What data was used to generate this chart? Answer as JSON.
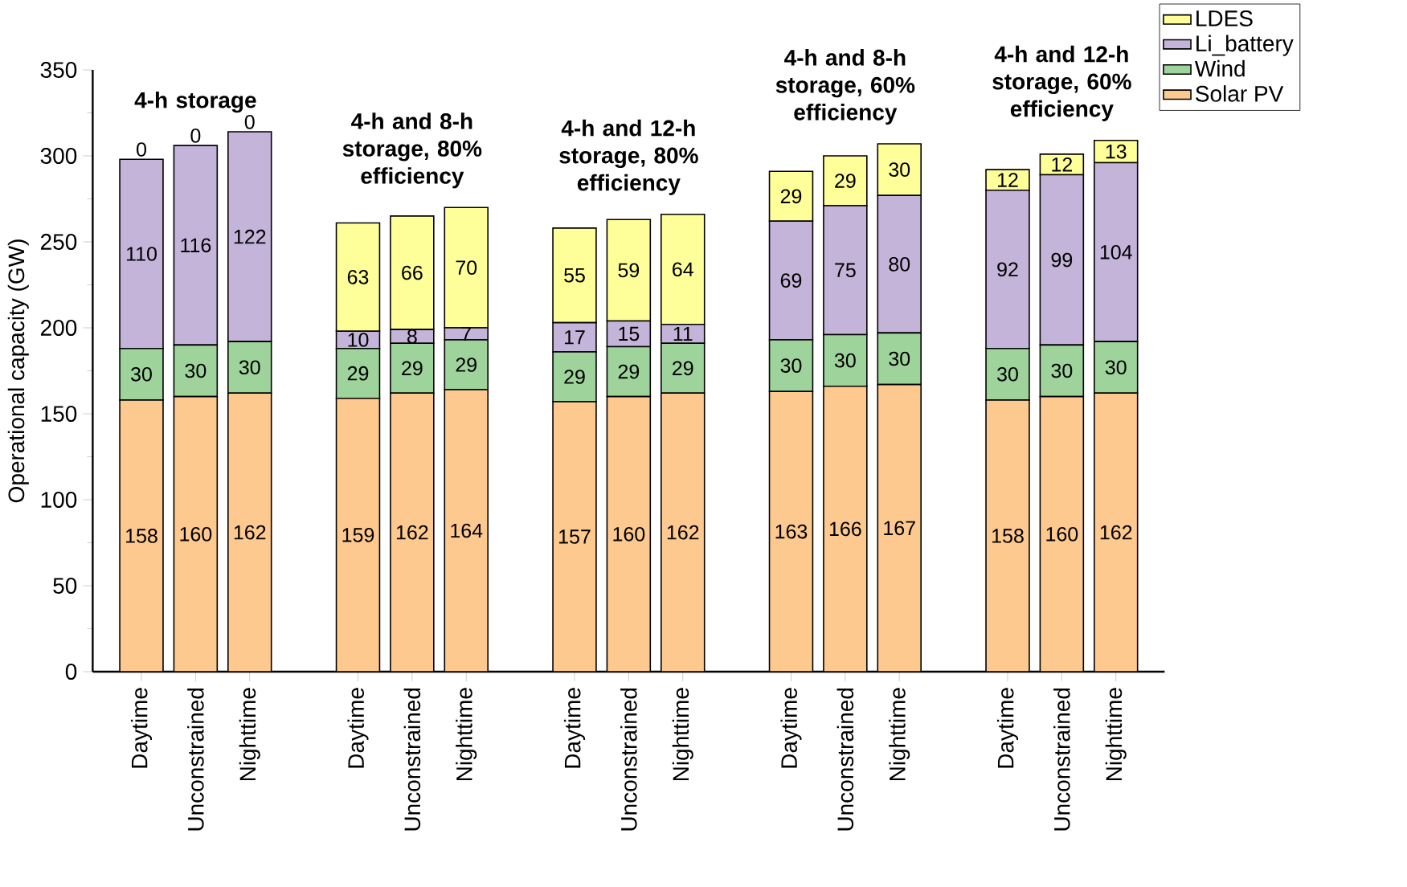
{
  "chart_data": {
    "type": "bar",
    "stacked": true,
    "ylabel": "Operational capacity (GW)",
    "categories": [
      "Daytime",
      "Unconstrained",
      "Nighttime",
      null,
      "Daytime",
      "Unconstrained",
      "Nighttime",
      null,
      "Daytime",
      "Unconstrained",
      "Nighttime",
      null,
      "Daytime",
      "Unconstrained",
      "Nighttime",
      null,
      "Daytime",
      "Unconstrained",
      "Nighttime"
    ],
    "series": [
      {
        "name": "Solar PV",
        "color": "#fdc98f",
        "values": [
          158,
          160,
          162,
          null,
          159,
          162,
          164,
          null,
          157,
          160,
          162,
          null,
          163,
          166,
          167,
          null,
          158,
          160,
          162
        ]
      },
      {
        "name": "Wind",
        "color": "#9ed49b",
        "values": [
          30,
          30,
          30,
          null,
          29,
          29,
          29,
          null,
          29,
          29,
          29,
          null,
          30,
          30,
          30,
          null,
          30,
          30,
          30
        ]
      },
      {
        "name": "Li_battery",
        "color": "#c5b4da",
        "values": [
          110,
          116,
          122,
          null,
          10,
          8,
          7,
          null,
          17,
          15,
          11,
          null,
          69,
          75,
          80,
          null,
          92,
          99,
          104
        ]
      },
      {
        "name": "LDES",
        "color": "#ffff99",
        "values": [
          0,
          0,
          0,
          null,
          63,
          66,
          70,
          null,
          55,
          59,
          64,
          null,
          29,
          29,
          30,
          null,
          12,
          12,
          13
        ]
      }
    ],
    "ylim": [
      0,
      350
    ],
    "yticks": [
      0,
      50,
      100,
      150,
      200,
      250,
      300,
      350
    ],
    "data_labels": true,
    "legend": "top right",
    "annotations": [
      "4-h storage",
      "4-h and 8-h storage, 80% efficiency",
      "4-h and 12-h storage, 80% efficiency",
      "4-h and 8-h storage, 60% efficiency",
      "4-h and 12-h storage, 60% efficiency"
    ]
  }
}
